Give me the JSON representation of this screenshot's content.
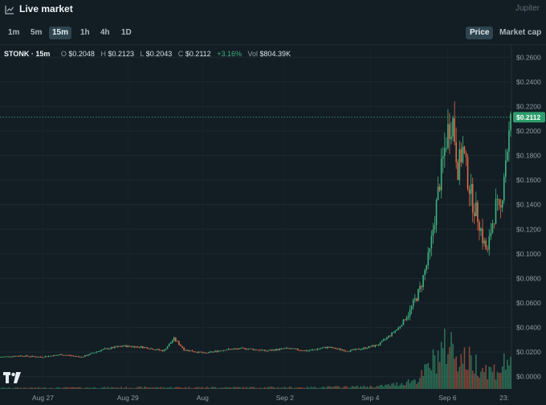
{
  "header": {
    "title": "Live market",
    "brand": "Jupiter",
    "icon": "chart-line-icon"
  },
  "toolbar": {
    "timeframes": [
      "1m",
      "5m",
      "15m",
      "1h",
      "4h",
      "1D"
    ],
    "active_timeframe": "15m",
    "price_label": "Price",
    "marketcap_label": "Market cap",
    "active_toggle": "Price"
  },
  "ohlc": {
    "symbol": "STONK · 15m",
    "o_label": "O",
    "o": "$0.2048",
    "h_label": "H",
    "h": "$0.2123",
    "l_label": "L",
    "l": "$0.2043",
    "c_label": "C",
    "c": "$0.2112",
    "change": "+3.16%",
    "vol_label": "Vol",
    "vol": "$804.39K"
  },
  "colors": {
    "up": "#3fb37f",
    "down": "#e06b4a",
    "last_price_bg": "#2f9e6e",
    "background": "#131d24"
  },
  "chart_data": {
    "type": "candlestick",
    "ylim": [
      -0.01,
      0.27
    ],
    "y_ticks": [
      "$0.2600",
      "$0.2400",
      "$0.2200",
      "$0.2000",
      "$0.1800",
      "$0.1600",
      "$0.1400",
      "$0.1200",
      "$0.1000",
      "$0.0800",
      "$0.0600",
      "$0.0400",
      "$0.0200",
      "$0.0000"
    ],
    "y_tick_values": [
      0.26,
      0.24,
      0.22,
      0.2,
      0.18,
      0.16,
      0.14,
      0.12,
      0.1,
      0.08,
      0.06,
      0.04,
      0.02,
      0.0
    ],
    "x_ticks": [
      "Aug 27",
      "Aug 29",
      "Aug",
      "Sep 2",
      "Sep 4",
      "Sep 6",
      "23:"
    ],
    "last_price": 0.2112,
    "last_price_label": "$0.2112",
    "price_path": [
      [
        0,
        0.016
      ],
      [
        4,
        0.017
      ],
      [
        8,
        0.016
      ],
      [
        12,
        0.018
      ],
      [
        16,
        0.016
      ],
      [
        20,
        0.022
      ],
      [
        24,
        0.025
      ],
      [
        28,
        0.024
      ],
      [
        32,
        0.021
      ],
      [
        34,
        0.031
      ],
      [
        36,
        0.022
      ],
      [
        40,
        0.019
      ],
      [
        44,
        0.022
      ],
      [
        48,
        0.023
      ],
      [
        52,
        0.021
      ],
      [
        56,
        0.023
      ],
      [
        60,
        0.021
      ],
      [
        64,
        0.024
      ],
      [
        68,
        0.021
      ],
      [
        71,
        0.023
      ],
      [
        74,
        0.026
      ],
      [
        76,
        0.033
      ],
      [
        78,
        0.04
      ],
      [
        80,
        0.052
      ],
      [
        82,
        0.07
      ],
      [
        84,
        0.1
      ],
      [
        85,
        0.13
      ],
      [
        86,
        0.16
      ],
      [
        87.5,
        0.2
      ],
      [
        88.5,
        0.21
      ],
      [
        89.5,
        0.17
      ],
      [
        90.5,
        0.185
      ],
      [
        91.5,
        0.16
      ],
      [
        92.5,
        0.14
      ],
      [
        93.5,
        0.13
      ],
      [
        94.5,
        0.11
      ],
      [
        95.3,
        0.1
      ],
      [
        96,
        0.12
      ],
      [
        97,
        0.14
      ],
      [
        97.8,
        0.13
      ],
      [
        98.6,
        0.17
      ],
      [
        99.3,
        0.19
      ],
      [
        100,
        0.2112
      ]
    ],
    "volume_path": [
      [
        0,
        0.02
      ],
      [
        30,
        0.03
      ],
      [
        60,
        0.03
      ],
      [
        74,
        0.05
      ],
      [
        78,
        0.1
      ],
      [
        82,
        0.2
      ],
      [
        84,
        0.45
      ],
      [
        86,
        0.7
      ],
      [
        88,
        0.9
      ],
      [
        90,
        0.6
      ],
      [
        92,
        0.55
      ],
      [
        94,
        0.45
      ],
      [
        96,
        0.35
      ],
      [
        98,
        0.4
      ],
      [
        100,
        0.7
      ]
    ]
  }
}
